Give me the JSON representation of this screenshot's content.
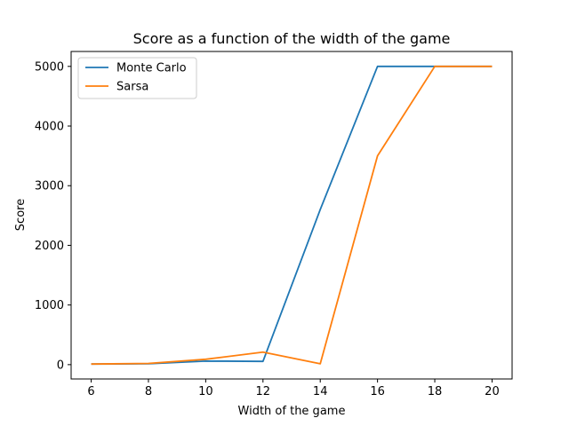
{
  "chart_data": {
    "type": "line",
    "title": "Score as a function of the width of the game",
    "xlabel": "Width of the game",
    "ylabel": "Score",
    "x": [
      6,
      8,
      10,
      12,
      14,
      16,
      18,
      20
    ],
    "xlim": [
      5.3,
      20.7
    ],
    "ylim": [
      -240,
      5250
    ],
    "xticks": [
      6,
      8,
      10,
      12,
      14,
      16,
      18,
      20
    ],
    "yticks": [
      0,
      1000,
      2000,
      3000,
      4000,
      5000
    ],
    "grid": false,
    "legend": "top-left",
    "series": [
      {
        "name": "Monte Carlo",
        "color": "#1f77b4",
        "values": [
          10,
          15,
          60,
          55,
          2600,
          5000,
          5000,
          5000
        ]
      },
      {
        "name": "Sarsa",
        "color": "#ff7f0e",
        "values": [
          10,
          20,
          90,
          210,
          15,
          3500,
          5000,
          5000
        ]
      }
    ]
  }
}
